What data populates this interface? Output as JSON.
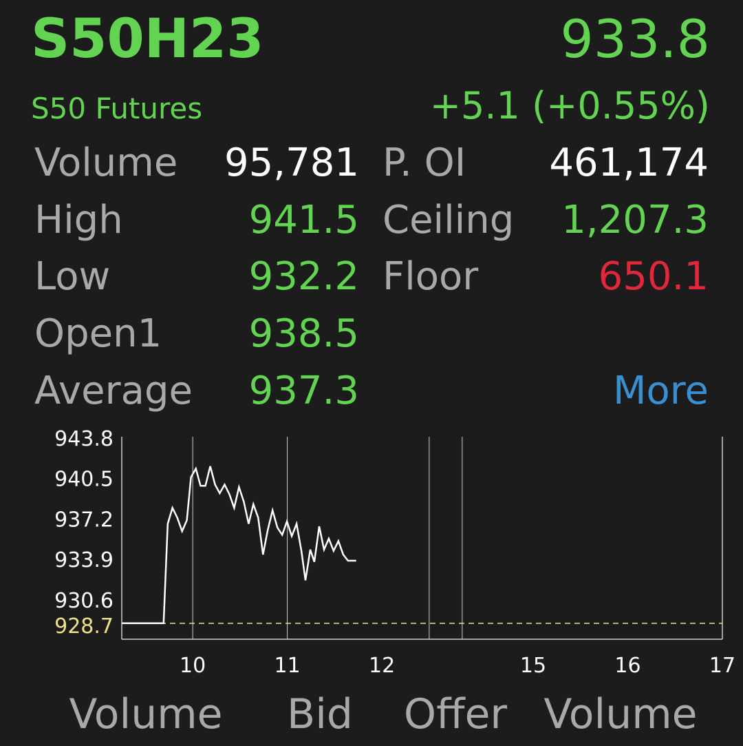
{
  "header": {
    "symbol": "S50H23",
    "price": "933.8",
    "name": "S50 Futures",
    "change": "+5.1 (+0.55%)"
  },
  "stats": {
    "left": [
      {
        "label": "Volume",
        "value": "95,781"
      },
      {
        "label": "High",
        "value": "941.5"
      },
      {
        "label": "Low",
        "value": "932.2"
      },
      {
        "label": "Open1",
        "value": "938.5"
      },
      {
        "label": "Average",
        "value": "937.3"
      }
    ],
    "right": [
      {
        "label": "P. OI",
        "value": "461,174"
      },
      {
        "label": "Ceiling",
        "value": "1,207.3"
      },
      {
        "label": "Floor",
        "value": "650.1"
      }
    ],
    "more": "More"
  },
  "chart_data": {
    "type": "line",
    "xlim": [
      9.25,
      17
    ],
    "x_break": [
      12.5,
      14.25
    ],
    "xticks": [
      10,
      11,
      12,
      15,
      16,
      17
    ],
    "ylim": [
      927.4,
      943.9
    ],
    "yticks": [
      943.8,
      940.5,
      937.2,
      933.9,
      930.6
    ],
    "reference": 928.7,
    "color": "#ffffff",
    "x": [
      9.25,
      9.692,
      9.736,
      9.786,
      9.837,
      9.888,
      9.938,
      9.982,
      10.033,
      10.083,
      10.134,
      10.185,
      10.236,
      10.286,
      10.337,
      10.388,
      10.438,
      10.489,
      10.54,
      10.591,
      10.641,
      10.692,
      10.743,
      10.793,
      10.844,
      10.895,
      10.946,
      10.996,
      11.047,
      11.098,
      11.149,
      11.192,
      11.243,
      11.286,
      11.337,
      11.388,
      11.438,
      11.489,
      11.54,
      11.591,
      11.641,
      11.728
    ],
    "values": [
      928.7,
      928.7,
      936.8,
      938.1,
      937.3,
      936.2,
      937.1,
      940.6,
      941.3,
      939.9,
      939.9,
      941.5,
      940.0,
      939.3,
      940.0,
      939.2,
      938.1,
      939.8,
      938.6,
      936.8,
      938.4,
      937.3,
      934.3,
      936.3,
      937.9,
      936.5,
      935.9,
      937.0,
      935.8,
      936.8,
      934.6,
      932.2,
      934.7,
      933.7,
      936.6,
      934.7,
      935.6,
      934.6,
      935.4,
      934.3,
      933.8,
      933.8
    ]
  },
  "footer": {
    "columns": [
      "Volume",
      "Bid",
      "Offer",
      "Volume"
    ]
  }
}
